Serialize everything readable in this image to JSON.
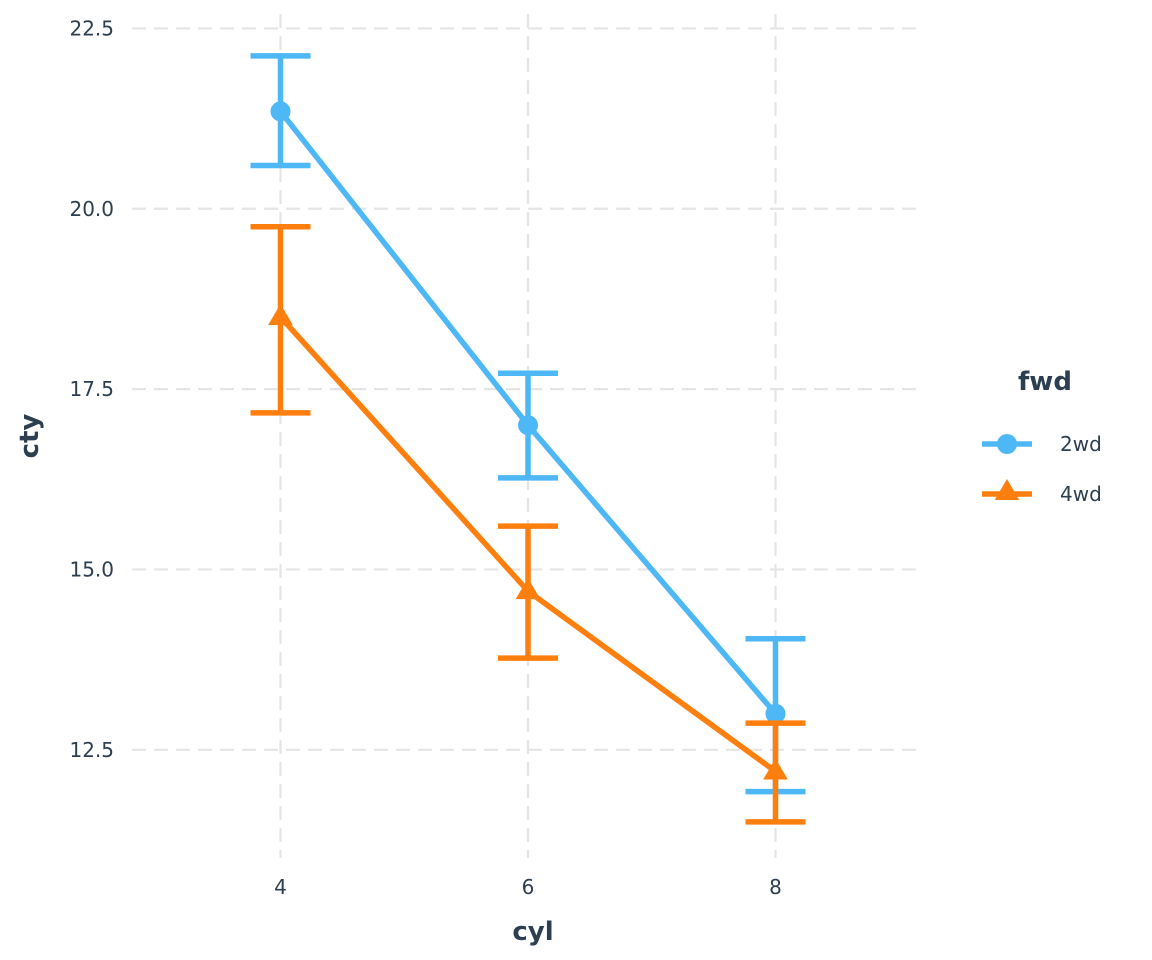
{
  "chart_data": {
    "type": "line",
    "title": "",
    "xlabel": "cyl",
    "ylabel": "cty",
    "x": [
      4,
      6,
      8
    ],
    "x_ticks": [
      "4",
      "6",
      "8"
    ],
    "y_ticks": [
      "12.5",
      "15.0",
      "17.5",
      "20.0",
      "22.5"
    ],
    "xlim": [
      2.8,
      9.2
    ],
    "ylim": [
      11.0,
      22.7
    ],
    "grid": true,
    "grid_style": "dashed",
    "legend_title": "fwd",
    "legend_position": "right",
    "series": [
      {
        "name": "2wd",
        "color": "#4db8f5",
        "marker": "circle",
        "values": [
          21.35,
          17.0,
          13.0
        ],
        "error_low": [
          20.6,
          16.27,
          11.92
        ],
        "error_high": [
          22.12,
          17.72,
          14.04
        ]
      },
      {
        "name": "4wd",
        "color": "#ff7f0e",
        "marker": "triangle",
        "values": [
          18.5,
          14.7,
          12.2
        ],
        "error_low": [
          17.17,
          13.77,
          11.5
        ],
        "error_high": [
          19.75,
          15.6,
          12.87
        ]
      }
    ]
  }
}
